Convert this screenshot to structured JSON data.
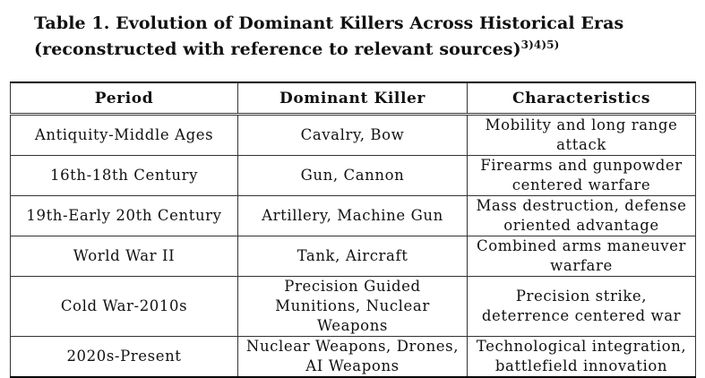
{
  "caption": {
    "text": "Table 1. Evolution of Dominant Killers Across Historical Eras (reconstructed with reference to relevant sources)",
    "refs": "3)4)5)"
  },
  "table": {
    "headers": [
      "Period",
      "Dominant Killer",
      "Characteristics"
    ],
    "rows": [
      [
        "Antiquity-Middle Ages",
        "Cavalry, Bow",
        "Mobility and long range attack"
      ],
      [
        "16th-18th Century",
        "Gun, Cannon",
        "Firearms and gunpowder centered warfare"
      ],
      [
        "19th-Early 20th Century",
        "Artillery, Machine Gun",
        "Mass destruction, defense oriented advantage"
      ],
      [
        "World War II",
        "Tank, Aircraft",
        "Combined arms maneuver warfare"
      ],
      [
        "Cold War-2010s",
        "Precision Guided Munitions, Nuclear Weapons",
        "Precision strike, deterrence centered war"
      ],
      [
        "2020s-Present",
        "Nuclear Weapons, Drones, AI Weapons",
        "Technological integration, battlefield innovation"
      ]
    ]
  }
}
